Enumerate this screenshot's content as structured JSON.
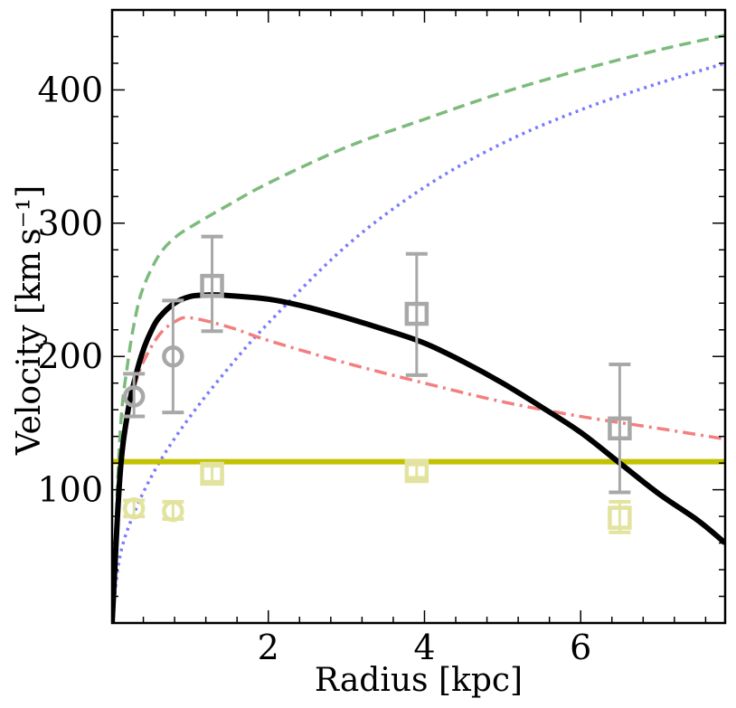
{
  "chart_data": {
    "type": "line",
    "title": "",
    "xlabel": "Radius [kpc]",
    "ylabel": "Velocity [km s⁻¹]",
    "xlim": [
      0,
      7.85
    ],
    "ylim": [
      0,
      460
    ],
    "x_ticks": [
      2,
      4,
      6
    ],
    "x_tick_labels": [
      "2",
      "4",
      "6"
    ],
    "y_ticks": [
      100,
      200,
      300,
      400
    ],
    "y_tick_labels": [
      "100",
      "200",
      "300",
      "400"
    ],
    "x_minor_step": 0.4,
    "y_minor_step": 20,
    "grid": false,
    "colors": {
      "black": "#000000",
      "green": "#7cbb7c",
      "blue": "#7a7aff",
      "red": "#f37f7f",
      "yellow": "#c2c200",
      "gray_marker": "#a8a8a8",
      "yellow_marker": "#e3e3a0"
    },
    "series": [
      {
        "name": "total-curve",
        "style": "solid-thick",
        "color": "#000000",
        "x": [
          0,
          0.1,
          0.2,
          0.3,
          0.4,
          0.5,
          0.6,
          0.8,
          1.0,
          1.2,
          1.4,
          2.0,
          2.5,
          3.0,
          3.5,
          4.0,
          4.5,
          5.0,
          5.5,
          6.0,
          6.5,
          7.0,
          7.5,
          7.85
        ],
        "values": [
          0,
          110,
          158,
          185,
          205,
          219,
          229,
          240,
          245,
          246,
          246,
          243,
          237,
          229,
          220,
          210,
          196,
          180,
          162,
          143,
          120,
          97,
          77,
          60
        ]
      },
      {
        "name": "green-dashed",
        "style": "dashed",
        "color": "#7cbb7c",
        "x": [
          0,
          0.1,
          0.2,
          0.3,
          0.4,
          0.6,
          0.8,
          1.0,
          1.5,
          2.0,
          3.0,
          4.0,
          5.0,
          6.0,
          7.0,
          7.85
        ],
        "values": [
          0,
          140,
          195,
          230,
          252,
          276,
          289,
          297,
          314,
          330,
          357,
          378,
          398,
          415,
          430,
          441
        ]
      },
      {
        "name": "blue-dotted",
        "style": "dotted",
        "color": "#7a7aff",
        "x": [
          0,
          0.1,
          0.3,
          0.6,
          1.0,
          1.5,
          2.0,
          3.0,
          4.0,
          5.0,
          6.0,
          7.0,
          7.85
        ],
        "values": [
          0,
          50,
          85,
          120,
          155,
          192,
          225,
          283,
          327,
          360,
          385,
          405,
          420
        ]
      },
      {
        "name": "red-dashdot",
        "style": "dashdot",
        "color": "#f37f7f",
        "x": [
          0,
          0.1,
          0.2,
          0.3,
          0.4,
          0.6,
          0.8,
          1.0,
          1.5,
          2.0,
          3.0,
          4.0,
          5.0,
          6.0,
          7.0,
          7.85
        ],
        "values": [
          0,
          110,
          158,
          180,
          196,
          216,
          226,
          229,
          222,
          212,
          195,
          180,
          166,
          155,
          146,
          138
        ]
      },
      {
        "name": "yellow-constant",
        "style": "solid",
        "color": "#c2c200",
        "x": [
          0,
          7.85
        ],
        "values": [
          121,
          121
        ]
      }
    ],
    "observations_gray": [
      {
        "marker": "circle",
        "x": 0.28,
        "y": 170,
        "yerr_low": 155,
        "yerr_high": 187
      },
      {
        "marker": "circle",
        "x": 0.78,
        "y": 200,
        "yerr_low": 158,
        "yerr_high": 242
      },
      {
        "marker": "square",
        "x": 1.28,
        "y": 253,
        "yerr_low": 219,
        "yerr_high": 290
      },
      {
        "marker": "square",
        "x": 3.9,
        "y": 232,
        "yerr_low": 186,
        "yerr_high": 277
      },
      {
        "marker": "square",
        "x": 6.5,
        "y": 146,
        "yerr_low": 98,
        "yerr_high": 194
      }
    ],
    "observations_yellow": [
      {
        "marker": "circle",
        "x": 0.28,
        "y": 86,
        "yerr_low": 80,
        "yerr_high": 92
      },
      {
        "marker": "circle",
        "x": 0.78,
        "y": 84,
        "yerr_low": 78,
        "yerr_high": 91
      },
      {
        "marker": "square",
        "x": 1.28,
        "y": 112,
        "yerr_low": 106,
        "yerr_high": 118
      },
      {
        "marker": "square",
        "x": 3.9,
        "y": 114,
        "yerr_low": 109,
        "yerr_high": 119
      },
      {
        "marker": "square",
        "x": 6.5,
        "y": 79,
        "yerr_low": 68,
        "yerr_high": 91
      }
    ]
  }
}
